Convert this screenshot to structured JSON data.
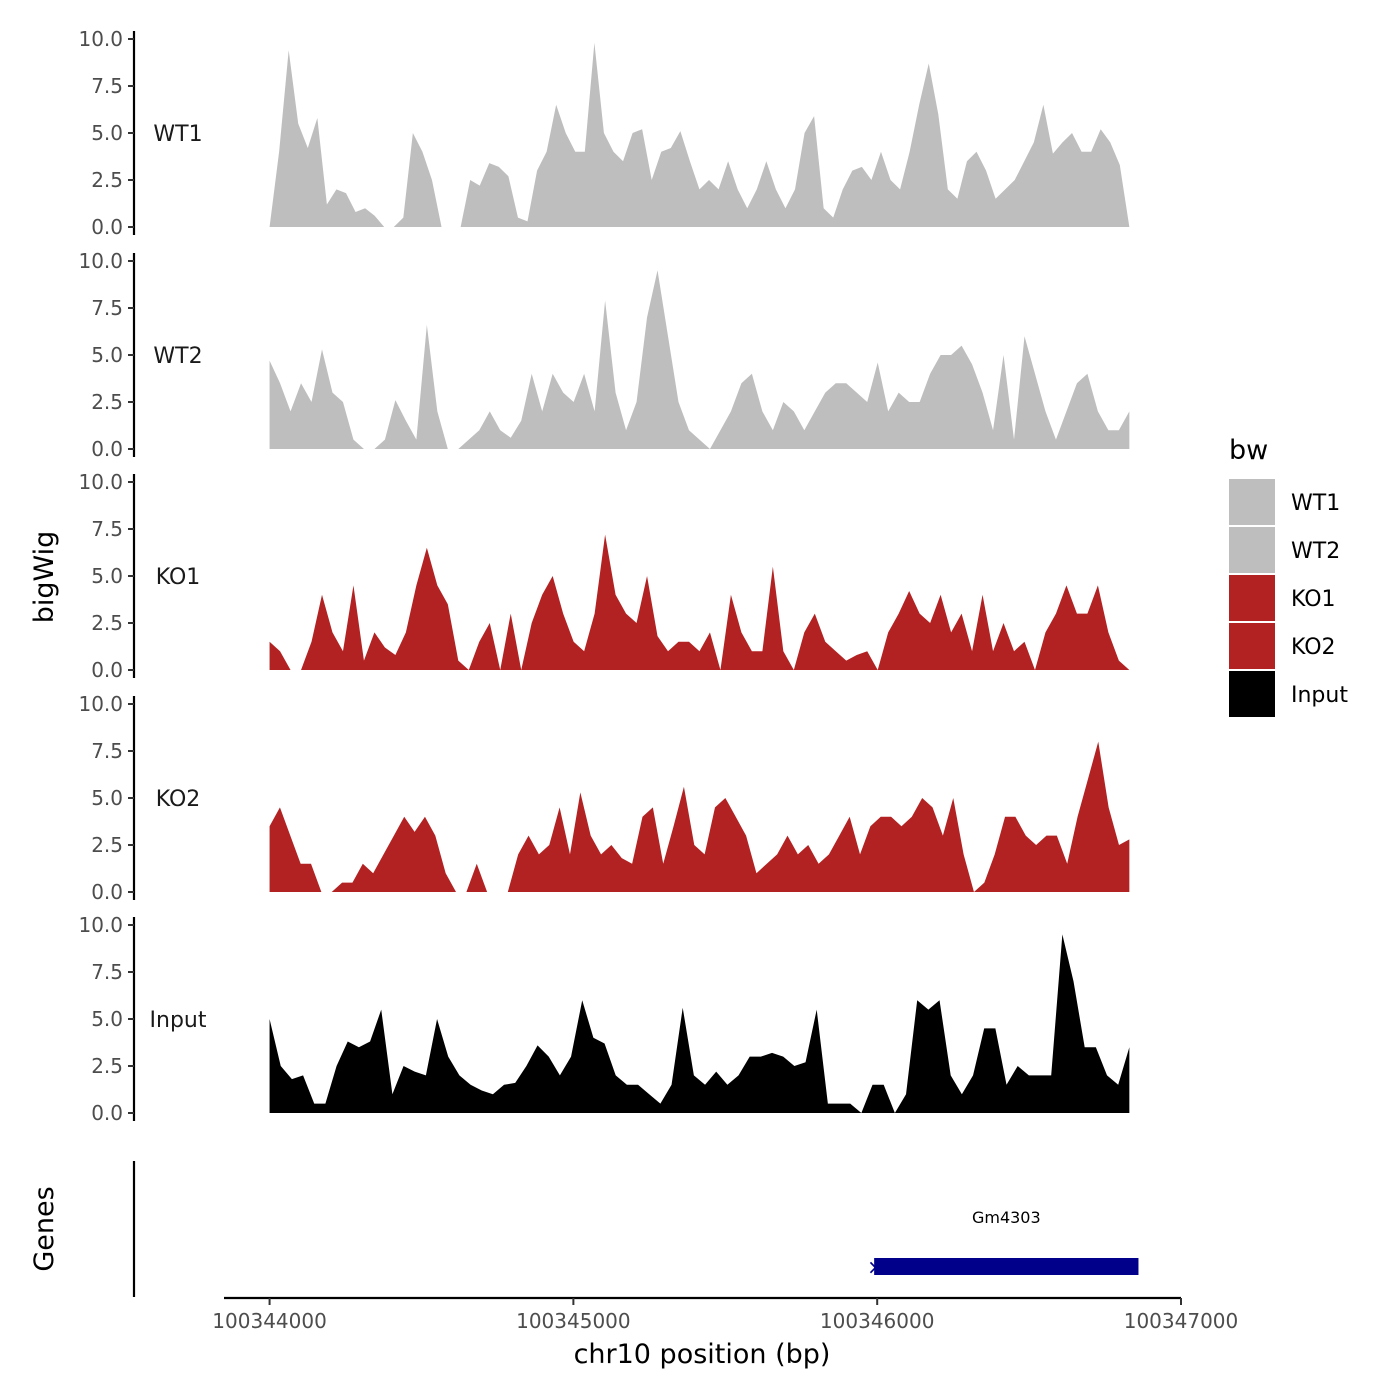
{
  "chart_data": {
    "type": "area",
    "ylabel": "bigWig",
    "xlabel": "chr10 position (bp)",
    "ylim": [
      0,
      10
    ],
    "y_ticks": [
      "0.0",
      "2.5",
      "5.0",
      "7.5",
      "10.0"
    ],
    "xlim": [
      100343850,
      100347000
    ],
    "x_ticks": [
      100344000,
      100345000,
      100346000,
      100347000
    ],
    "x_tick_labels": [
      "100344000",
      "100345000",
      "100346000",
      "100347000"
    ],
    "data_range": [
      100344000,
      100346830
    ],
    "series": [
      {
        "name": "WT1",
        "color": "#bebebe",
        "values": [
          0,
          4,
          9.4,
          5.5,
          4.2,
          5.8,
          1.2,
          2,
          1.8,
          0.8,
          1,
          0.6,
          0,
          0,
          0.5,
          5,
          4,
          2.5,
          0,
          0,
          0,
          2.5,
          2.2,
          3.4,
          3.2,
          2.7,
          0.5,
          0.3,
          3,
          4,
          6.5,
          5,
          4,
          4,
          9.8,
          5,
          4,
          3.5,
          5,
          5.2,
          2.5,
          4,
          4.2,
          5.1,
          3.5,
          2,
          2.5,
          2,
          3.5,
          2,
          1,
          2,
          3.5,
          2,
          1,
          2,
          5,
          5.9,
          1,
          0.5,
          2,
          3,
          3.2,
          2.5,
          4,
          2.5,
          2,
          4,
          6.5,
          8.7,
          6,
          2,
          1.5,
          3.5,
          4,
          3,
          1.5,
          2,
          2.5,
          3.5,
          4.5,
          6.5,
          3.9,
          4.5,
          5,
          4,
          4,
          5.2,
          4.5,
          3.3,
          0
        ]
      },
      {
        "name": "WT2",
        "color": "#bebebe",
        "values": [
          4.7,
          3.5,
          2,
          3.5,
          2.5,
          5.3,
          3,
          2.5,
          0.5,
          0,
          0,
          0.5,
          2.6,
          1.5,
          0.5,
          6.6,
          2,
          0,
          0,
          0.5,
          1,
          2,
          1,
          0.6,
          1.5,
          4,
          2,
          4,
          3,
          2.5,
          4,
          2,
          7.9,
          3,
          1,
          2.5,
          7,
          9.5,
          6,
          2.5,
          1,
          0.5,
          0,
          1,
          2,
          3.5,
          4,
          2,
          1,
          2.5,
          2,
          1,
          2,
          3,
          3.5,
          3.5,
          3,
          2.5,
          4.6,
          2,
          3,
          2.5,
          2.5,
          4,
          5,
          5,
          5.5,
          4.5,
          3,
          1,
          5,
          0.5,
          6,
          4,
          2,
          0.5,
          2,
          3.5,
          4,
          2,
          1,
          1,
          2
        ]
      },
      {
        "name": "KO1",
        "color": "#b22222",
        "values": [
          1.5,
          1,
          0,
          0,
          1.5,
          4,
          2,
          1,
          4.5,
          0.5,
          2,
          1.2,
          0.8,
          2,
          4.5,
          6.5,
          4.5,
          3.5,
          0.5,
          0,
          1.5,
          2.5,
          0,
          3,
          0,
          2.5,
          4,
          5,
          3,
          1.5,
          1,
          3,
          7.2,
          4,
          3,
          2.5,
          5,
          1.8,
          1,
          1.5,
          1.5,
          1,
          2,
          0,
          4,
          2,
          1,
          1,
          5.5,
          1,
          0,
          2,
          3,
          1.5,
          1,
          0.5,
          0.8,
          1,
          0,
          2,
          3,
          4.2,
          3,
          2.5,
          4,
          2,
          3,
          1,
          4,
          1,
          2.5,
          1,
          1.5,
          0,
          2,
          3,
          4.5,
          3,
          3,
          4.5,
          2,
          0.5,
          0
        ]
      },
      {
        "name": "KO2",
        "color": "#b22222",
        "values": [
          3.5,
          4.5,
          3,
          1.5,
          1.5,
          0,
          0,
          0.5,
          0.5,
          1.5,
          1,
          2,
          3,
          4,
          3.2,
          4,
          3,
          1,
          0,
          0,
          1.5,
          0,
          0,
          0,
          2,
          3,
          2,
          2.5,
          4.5,
          2,
          5.3,
          3,
          2,
          2.5,
          1.8,
          1.5,
          4,
          4.5,
          1.5,
          3.5,
          5.6,
          2.5,
          2,
          4.5,
          5,
          4,
          3,
          1,
          1.5,
          2,
          3,
          2,
          2.5,
          1.5,
          2,
          3,
          4,
          2,
          3.5,
          4,
          4,
          3.5,
          4,
          5,
          4.5,
          3,
          5,
          2,
          0,
          0.5,
          2,
          4,
          4,
          3,
          2.5,
          3,
          3,
          1.5,
          4,
          6,
          8,
          4.5,
          2.5,
          2.8
        ]
      },
      {
        "name": "Input",
        "color": "#000000",
        "values": [
          5,
          2.5,
          1.8,
          2,
          0.5,
          0.5,
          2.5,
          3.8,
          3.5,
          3.8,
          5.5,
          1,
          2.5,
          2.2,
          2,
          5,
          3,
          2,
          1.5,
          1.2,
          1,
          1.5,
          1.6,
          2.5,
          3.6,
          3,
          2,
          3,
          6,
          4,
          3.7,
          2,
          1.5,
          1.5,
          1,
          0.5,
          1.5,
          5.6,
          2,
          1.5,
          2.2,
          1.5,
          2,
          3,
          3,
          3.2,
          3,
          2.5,
          2.7,
          5.5,
          0.5,
          0.5,
          0.5,
          0,
          1.5,
          1.5,
          0,
          1,
          6,
          5.5,
          6,
          2,
          1,
          2,
          4.5,
          4.5,
          1.5,
          2.5,
          2,
          2,
          2,
          9.5,
          7,
          3.5,
          3.5,
          2,
          1.5,
          3.5
        ]
      }
    ],
    "legend": {
      "title": "bw",
      "position": "right",
      "items": [
        {
          "label": "WT1",
          "color": "#bebebe"
        },
        {
          "label": "WT2",
          "color": "#bebebe"
        },
        {
          "label": "KO1",
          "color": "#b22222"
        },
        {
          "label": "KO2",
          "color": "#b22222"
        },
        {
          "label": "Input",
          "color": "#000000"
        }
      ]
    },
    "genes_track": {
      "ylabel": "Genes",
      "genes": [
        {
          "name": "Gm4303",
          "start": 100345990,
          "end": 100346860,
          "strand": "-",
          "color": "#00008b"
        }
      ]
    }
  }
}
